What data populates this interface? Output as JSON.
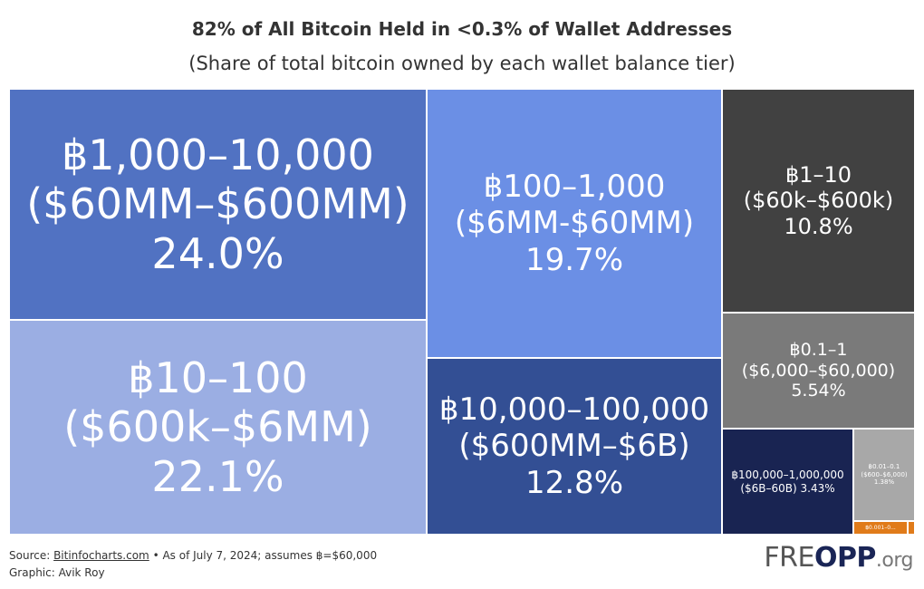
{
  "header": {
    "title": "82% of All Bitcoin Held in <0.3% of Wallet Addresses",
    "subtitle": "(Share of total bitcoin owned by each wallet balance tier)"
  },
  "chart_data": {
    "type": "treemap",
    "title": "82% of All Bitcoin Held in <0.3% of Wallet Addresses",
    "subtitle": "(Share of total bitcoin owned by each wallet balance tier)",
    "tiers": [
      {
        "label": "฿1,000–10,000",
        "usd": "($60MM–$600MM)",
        "value_text": "24.0%",
        "value": 24.0,
        "color": "#5172c2"
      },
      {
        "label": "฿10–100",
        "usd": "($600k–$6MM)",
        "value_text": "22.1%",
        "value": 22.1,
        "color": "#9baee3"
      },
      {
        "label": "฿100–1,000",
        "usd": "($6MM-$60MM)",
        "value_text": "19.7%",
        "value": 19.7,
        "color": "#6b8fe5"
      },
      {
        "label": "฿10,000–100,000",
        "usd": "($600MM–$6B)",
        "value_text": "12.8%",
        "value": 12.8,
        "color": "#334f94"
      },
      {
        "label": "฿1–10",
        "usd": "($60k–$600k)",
        "value_text": "10.8%",
        "value": 10.8,
        "color": "#414141"
      },
      {
        "label": "฿0.1–1",
        "usd": "($6,000–$60,000)",
        "value_text": "5.54%",
        "value": 5.54,
        "color": "#7a7a7a"
      },
      {
        "label": "฿100,000–1,000,000",
        "usd": "($6B–60B) 3.43%",
        "value_text": "",
        "value": 3.43,
        "color": "#192452"
      },
      {
        "label": "฿0.01–0.1",
        "usd": "($600–$6,000)",
        "value_text": "1.38%",
        "value": 1.38,
        "color": "#a8a8a8"
      },
      {
        "label": "฿0.001–0...",
        "usd": "",
        "value_text": "",
        "value": 0.3,
        "color": "#e07b1a"
      },
      {
        "label": "",
        "usd": "",
        "value_text": "",
        "value": 0.05,
        "color": "#e07b1a"
      }
    ]
  },
  "footer": {
    "source_prefix": "Source: ",
    "source_link": "Bitinfocharts.com",
    "source_suffix": " • As of July 7, 2024; assumes ฿=$60,000",
    "graphic": "Graphic: Avik Roy"
  },
  "logo": {
    "part1": "FRE",
    "part2": "OPP",
    "part3": ".org"
  }
}
